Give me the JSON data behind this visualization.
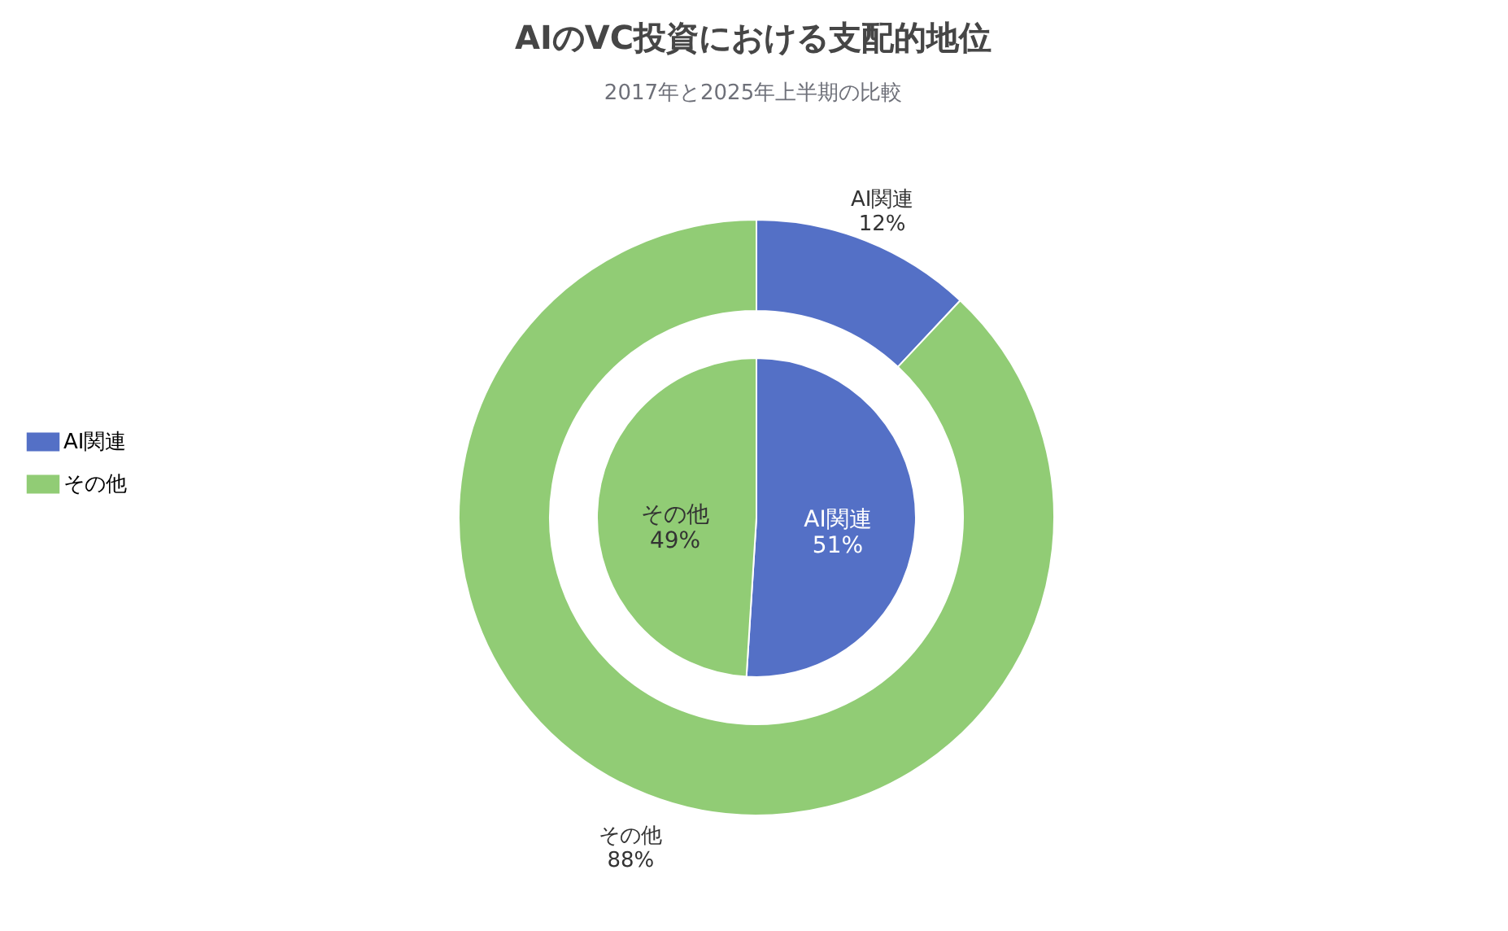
{
  "chart_data": {
    "type": "donut",
    "title": "AIのVC投資における支配的地位",
    "subtitle": "2017年と2025年上半期の比較",
    "categories": [
      "AI関連",
      "その他"
    ],
    "colors": [
      "#5470c6",
      "#91cc75"
    ],
    "legend": "left",
    "series": [
      {
        "values": [
          51,
          49
        ],
        "value_labels": [
          "51%",
          "49%"
        ]
      },
      {
        "values": [
          12,
          88
        ],
        "value_labels": [
          "12%",
          "88%"
        ]
      }
    ]
  }
}
